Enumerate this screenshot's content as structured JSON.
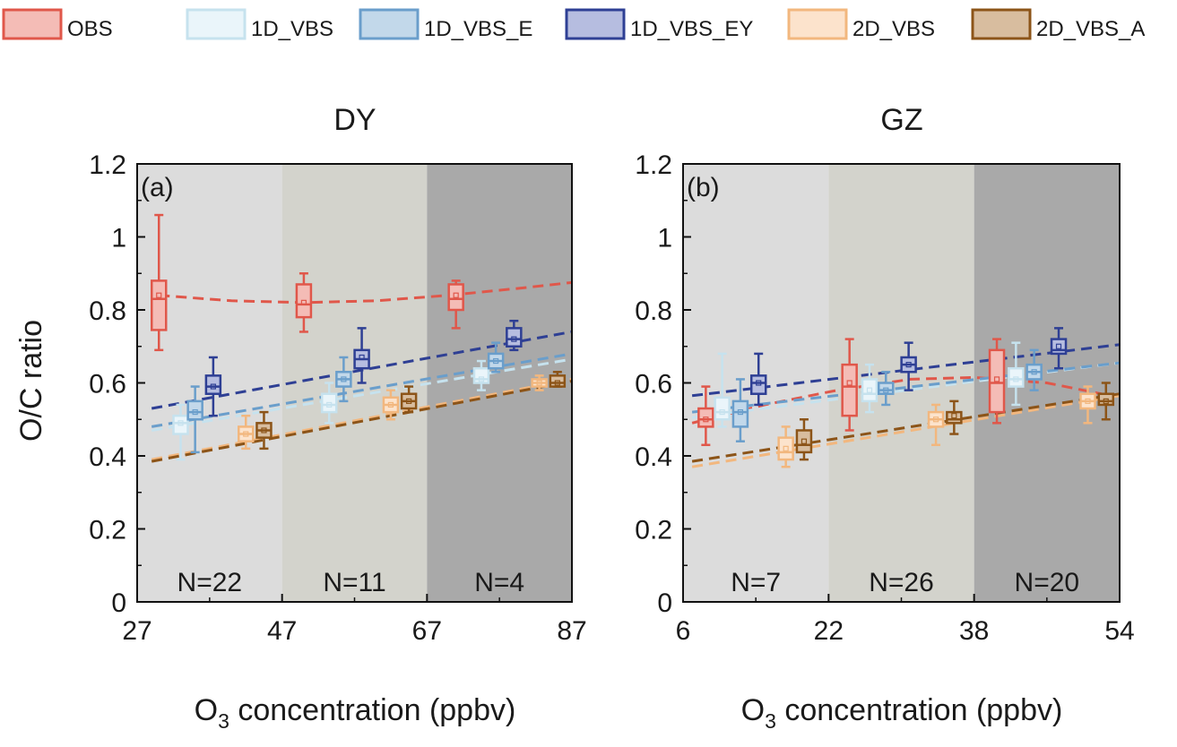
{
  "chart_data": {
    "type": "box",
    "legend": {
      "placement": "top",
      "entries": [
        {
          "name": "OBS",
          "edge": "#e0574a",
          "fill": "#f4bcb6"
        },
        {
          "name": "1D_VBS",
          "edge": "#c6e2ee",
          "fill": "#eaf5fa"
        },
        {
          "name": "1D_VBS_E",
          "edge": "#6a9ecb",
          "fill": "#c2d8ea"
        },
        {
          "name": "1D_VBS_EY",
          "edge": "#2e3f94",
          "fill": "#b6bde0"
        },
        {
          "name": "2D_VBS",
          "edge": "#f2b77e",
          "fill": "#fce3cc"
        },
        {
          "name": "2D_VBS_A",
          "edge": "#8c5418",
          "fill": "#d8bd9f"
        }
      ]
    },
    "panels": [
      {
        "title": "DY",
        "tag": "(a)",
        "xlabel": {
          "pre": "O",
          "sub": "3",
          "post": " concentration (ppbv)"
        },
        "ylabel": "O/C ratio",
        "xlim": [
          27,
          87
        ],
        "ylim": [
          0,
          1.2
        ],
        "xticks": [
          "27",
          "47",
          "67",
          "87"
        ],
        "yticks": [
          "0",
          "0.2",
          "0.4",
          "0.6",
          "0.8",
          "1",
          "1.2"
        ],
        "regions": [
          {
            "range": [
              27,
              47
            ],
            "label": "N=22",
            "shade": "#dcdcdc"
          },
          {
            "range": [
              47,
              67
            ],
            "label": "N=11",
            "shade": "#d3d3cc"
          },
          {
            "range": [
              67,
              87
            ],
            "label": "N=4",
            "shade": "#a9a9a9"
          }
        ],
        "boxes": [
          {
            "series": "OBS",
            "x": 30,
            "whislo": 0.69,
            "q1": 0.745,
            "med": 0.83,
            "mean": 0.84,
            "q3": 0.88,
            "whishi": 1.06
          },
          {
            "series": "1D_VBS",
            "x": 33,
            "whislo": 0.39,
            "q1": 0.46,
            "med": 0.49,
            "mean": 0.49,
            "q3": 0.51,
            "whishi": 0.54
          },
          {
            "series": "1D_VBS_E",
            "x": 35,
            "whislo": 0.41,
            "q1": 0.5,
            "med": 0.52,
            "mean": 0.52,
            "q3": 0.55,
            "whishi": 0.59
          },
          {
            "series": "1D_VBS_EY",
            "x": 37.5,
            "whislo": 0.51,
            "q1": 0.57,
            "med": 0.59,
            "mean": 0.59,
            "q3": 0.62,
            "whishi": 0.67
          },
          {
            "series": "2D_VBS",
            "x": 42,
            "whislo": 0.42,
            "q1": 0.44,
            "med": 0.46,
            "mean": 0.46,
            "q3": 0.48,
            "whishi": 0.51
          },
          {
            "series": "2D_VBS_A",
            "x": 44.5,
            "whislo": 0.42,
            "q1": 0.45,
            "med": 0.47,
            "mean": 0.47,
            "q3": 0.49,
            "whishi": 0.52
          },
          {
            "series": "OBS",
            "x": 50,
            "whislo": 0.74,
            "q1": 0.78,
            "med": 0.815,
            "mean": 0.82,
            "q3": 0.87,
            "whishi": 0.9
          },
          {
            "series": "1D_VBS",
            "x": 53.5,
            "whislo": 0.49,
            "q1": 0.52,
            "med": 0.54,
            "mean": 0.54,
            "q3": 0.57,
            "whishi": 0.6
          },
          {
            "series": "1D_VBS_E",
            "x": 55.5,
            "whislo": 0.55,
            "q1": 0.59,
            "med": 0.61,
            "mean": 0.61,
            "q3": 0.63,
            "whishi": 0.67
          },
          {
            "series": "1D_VBS_EY",
            "x": 58,
            "whislo": 0.6,
            "q1": 0.64,
            "med": 0.665,
            "mean": 0.67,
            "q3": 0.69,
            "whishi": 0.75
          },
          {
            "series": "2D_VBS",
            "x": 62,
            "whislo": 0.5,
            "q1": 0.52,
            "med": 0.54,
            "mean": 0.54,
            "q3": 0.56,
            "whishi": 0.58
          },
          {
            "series": "2D_VBS_A",
            "x": 64.5,
            "whislo": 0.52,
            "q1": 0.53,
            "med": 0.55,
            "mean": 0.55,
            "q3": 0.57,
            "whishi": 0.59
          },
          {
            "series": "OBS",
            "x": 71,
            "whislo": 0.75,
            "q1": 0.8,
            "med": 0.83,
            "mean": 0.84,
            "q3": 0.87,
            "whishi": 0.88
          },
          {
            "series": "1D_VBS",
            "x": 74.5,
            "whislo": 0.58,
            "q1": 0.6,
            "med": 0.61,
            "mean": 0.61,
            "q3": 0.64,
            "whishi": 0.66
          },
          {
            "series": "1D_VBS_E",
            "x": 76.5,
            "whislo": 0.63,
            "q1": 0.64,
            "med": 0.66,
            "mean": 0.66,
            "q3": 0.68,
            "whishi": 0.71
          },
          {
            "series": "1D_VBS_EY",
            "x": 79,
            "whislo": 0.69,
            "q1": 0.7,
            "med": 0.72,
            "mean": 0.72,
            "q3": 0.75,
            "whishi": 0.77
          },
          {
            "series": "2D_VBS",
            "x": 82.5,
            "whislo": 0.58,
            "q1": 0.59,
            "med": 0.6,
            "mean": 0.6,
            "q3": 0.61,
            "whishi": 0.62
          },
          {
            "series": "2D_VBS_A",
            "x": 85,
            "whislo": 0.59,
            "q1": 0.59,
            "med": 0.6,
            "mean": 0.6,
            "q3": 0.62,
            "whishi": 0.63
          }
        ],
        "fits": [
          {
            "series": "OBS",
            "points": [
              [
                30,
                0.84
              ],
              [
                40,
                0.825
              ],
              [
                50,
                0.82
              ],
              [
                60,
                0.825
              ],
              [
                70,
                0.84
              ],
              [
                80,
                0.86
              ],
              [
                87,
                0.875
              ]
            ]
          },
          {
            "series": "1D_VBS",
            "points": [
              [
                29,
                0.47
              ],
              [
                87,
                0.665
              ]
            ]
          },
          {
            "series": "1D_VBS_E",
            "points": [
              [
                29,
                0.48
              ],
              [
                87,
                0.68
              ]
            ]
          },
          {
            "series": "1D_VBS_EY",
            "points": [
              [
                29,
                0.53
              ],
              [
                87,
                0.74
              ]
            ]
          },
          {
            "series": "2D_VBS",
            "points": [
              [
                29,
                0.39
              ],
              [
                87,
                0.61
              ]
            ]
          },
          {
            "series": "2D_VBS_A",
            "points": [
              [
                29,
                0.385
              ],
              [
                87,
                0.605
              ]
            ]
          }
        ]
      },
      {
        "title": "GZ",
        "tag": "(b)",
        "xlabel": {
          "pre": "O",
          "sub": "3",
          "post": " concentration (ppbv)"
        },
        "xlim": [
          6,
          54
        ],
        "ylim": [
          0,
          1.2
        ],
        "xticks": [
          "6",
          "22",
          "38",
          "54"
        ],
        "yticks": [
          "0",
          "0.2",
          "0.4",
          "0.6",
          "0.8",
          "1",
          "1.2"
        ],
        "regions": [
          {
            "range": [
              6,
              22
            ],
            "label": "N=7",
            "shade": "#dcdcdc"
          },
          {
            "range": [
              22,
              38
            ],
            "label": "N=26",
            "shade": "#d3d3cc"
          },
          {
            "range": [
              38,
              54
            ],
            "label": "N=20",
            "shade": "#a9a9a9"
          }
        ],
        "boxes": [
          {
            "series": "OBS",
            "x": 8.5,
            "whislo": 0.43,
            "q1": 0.48,
            "med": 0.5,
            "mean": 0.5,
            "q3": 0.53,
            "whishi": 0.59
          },
          {
            "series": "1D_VBS",
            "x": 10.3,
            "whislo": 0.48,
            "q1": 0.5,
            "med": 0.52,
            "mean": 0.52,
            "q3": 0.56,
            "whishi": 0.68
          },
          {
            "series": "1D_VBS_E",
            "x": 12.3,
            "whislo": 0.44,
            "q1": 0.48,
            "med": 0.52,
            "mean": 0.52,
            "q3": 0.55,
            "whishi": 0.61
          },
          {
            "series": "1D_VBS_EY",
            "x": 14.3,
            "whislo": 0.54,
            "q1": 0.57,
            "med": 0.6,
            "mean": 0.6,
            "q3": 0.62,
            "whishi": 0.68
          },
          {
            "series": "2D_VBS",
            "x": 17.3,
            "whislo": 0.37,
            "q1": 0.39,
            "med": 0.41,
            "mean": 0.42,
            "q3": 0.45,
            "whishi": 0.48
          },
          {
            "series": "2D_VBS_A",
            "x": 19.3,
            "whislo": 0.39,
            "q1": 0.41,
            "med": 0.43,
            "mean": 0.44,
            "q3": 0.47,
            "whishi": 0.5
          },
          {
            "series": "OBS",
            "x": 24.3,
            "whislo": 0.47,
            "q1": 0.51,
            "med": 0.59,
            "mean": 0.6,
            "q3": 0.65,
            "whishi": 0.72
          },
          {
            "series": "1D_VBS",
            "x": 26.5,
            "whislo": 0.52,
            "q1": 0.55,
            "med": 0.57,
            "mean": 0.58,
            "q3": 0.61,
            "whishi": 0.65
          },
          {
            "series": "1D_VBS_E",
            "x": 28.3,
            "whislo": 0.54,
            "q1": 0.57,
            "med": 0.58,
            "mean": 0.58,
            "q3": 0.6,
            "whishi": 0.63
          },
          {
            "series": "1D_VBS_EY",
            "x": 30.8,
            "whislo": 0.58,
            "q1": 0.63,
            "med": 0.65,
            "mean": 0.65,
            "q3": 0.67,
            "whishi": 0.71
          },
          {
            "series": "2D_VBS",
            "x": 33.8,
            "whislo": 0.43,
            "q1": 0.48,
            "med": 0.5,
            "mean": 0.5,
            "q3": 0.52,
            "whishi": 0.54
          },
          {
            "series": "2D_VBS_A",
            "x": 35.8,
            "whislo": 0.46,
            "q1": 0.49,
            "med": 0.5,
            "mean": 0.51,
            "q3": 0.52,
            "whishi": 0.55
          },
          {
            "series": "OBS",
            "x": 40.5,
            "whislo": 0.49,
            "q1": 0.52,
            "med": 0.6,
            "mean": 0.61,
            "q3": 0.69,
            "whishi": 0.72
          },
          {
            "series": "1D_VBS",
            "x": 42.6,
            "whislo": 0.54,
            "q1": 0.59,
            "med": 0.61,
            "mean": 0.61,
            "q3": 0.64,
            "whishi": 0.71
          },
          {
            "series": "1D_VBS_E",
            "x": 44.6,
            "whislo": 0.58,
            "q1": 0.61,
            "med": 0.63,
            "mean": 0.63,
            "q3": 0.65,
            "whishi": 0.69
          },
          {
            "series": "1D_VBS_EY",
            "x": 47.3,
            "whislo": 0.64,
            "q1": 0.68,
            "med": 0.69,
            "mean": 0.7,
            "q3": 0.72,
            "whishi": 0.75
          },
          {
            "series": "2D_VBS",
            "x": 50.5,
            "whislo": 0.49,
            "q1": 0.53,
            "med": 0.55,
            "mean": 0.55,
            "q3": 0.57,
            "whishi": 0.59
          },
          {
            "series": "2D_VBS_A",
            "x": 52.5,
            "whislo": 0.5,
            "q1": 0.54,
            "med": 0.55,
            "mean": 0.55,
            "q3": 0.57,
            "whishi": 0.6
          }
        ],
        "fits": [
          {
            "series": "OBS",
            "points": [
              [
                7,
                0.49
              ],
              [
                15,
                0.54
              ],
              [
                23,
                0.58
              ],
              [
                31,
                0.61
              ],
              [
                38,
                0.615
              ],
              [
                46,
                0.6
              ],
              [
                52,
                0.57
              ]
            ]
          },
          {
            "series": "1D_VBS",
            "points": [
              [
                7,
                0.505
              ],
              [
                54,
                0.655
              ]
            ]
          },
          {
            "series": "1D_VBS_E",
            "points": [
              [
                7,
                0.52
              ],
              [
                54,
                0.655
              ]
            ]
          },
          {
            "series": "1D_VBS_EY",
            "points": [
              [
                7,
                0.565
              ],
              [
                54,
                0.705
              ]
            ]
          },
          {
            "series": "2D_VBS",
            "points": [
              [
                7,
                0.37
              ],
              [
                54,
                0.565
              ]
            ]
          },
          {
            "series": "2D_VBS_A",
            "points": [
              [
                7,
                0.385
              ],
              [
                54,
                0.57
              ]
            ]
          }
        ]
      }
    ]
  }
}
